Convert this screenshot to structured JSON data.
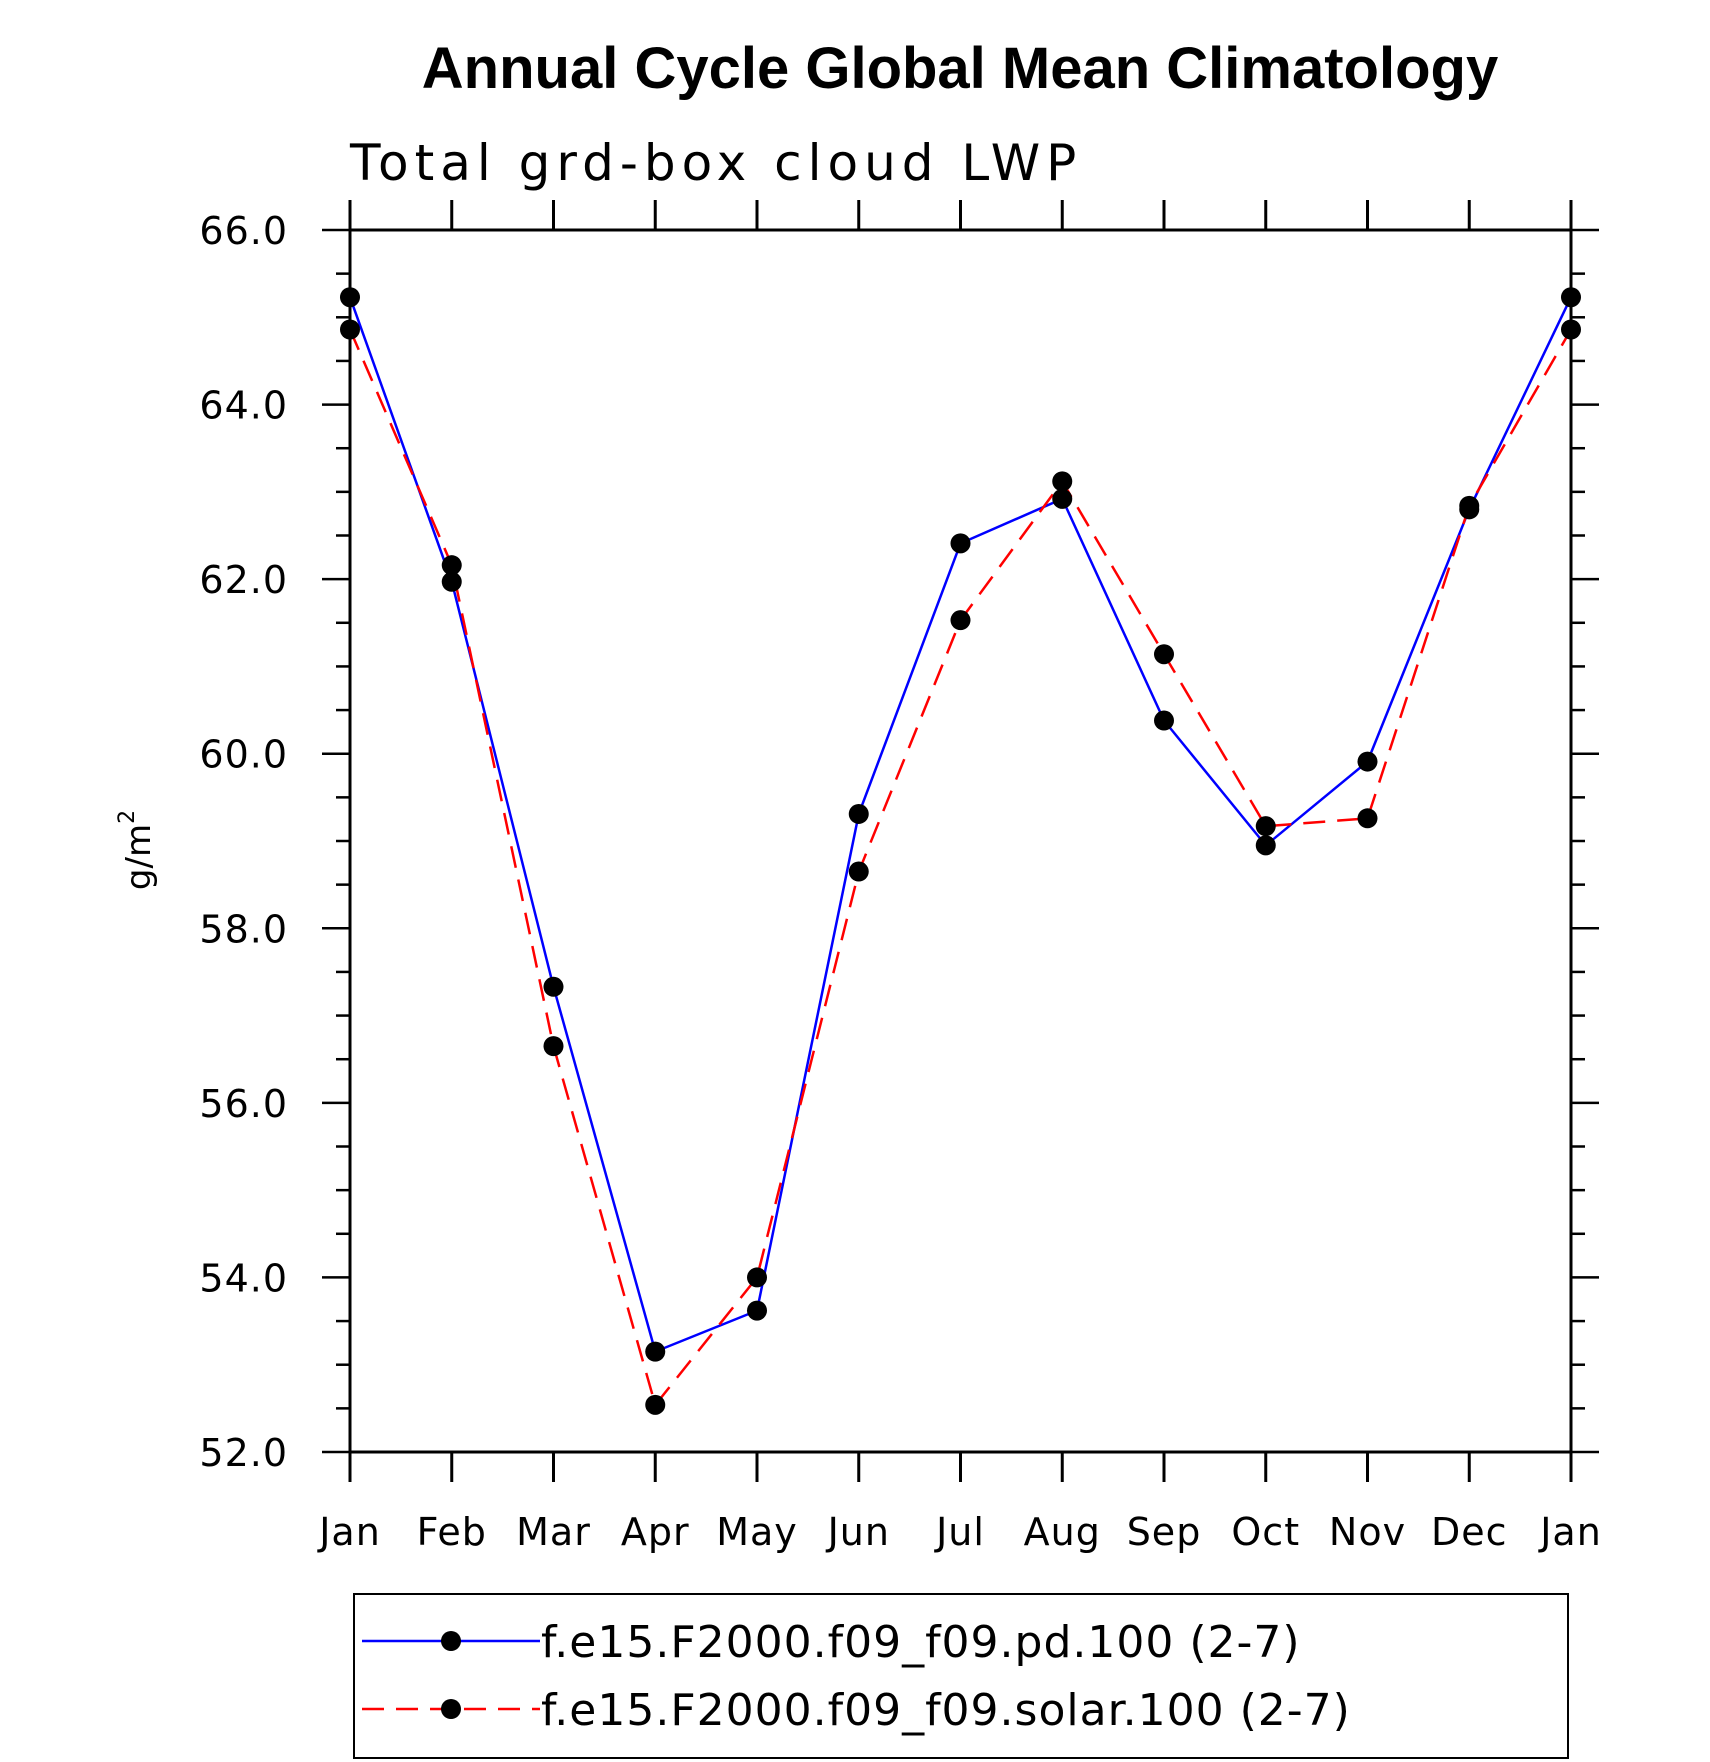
{
  "chart_data": {
    "type": "line",
    "title": "Annual Cycle Global Mean Climatology",
    "subtitle": "Total grd-box cloud LWP",
    "ylabel": "g/m",
    "ylabel_superscript": "2",
    "xlabel": "",
    "ylim": [
      52.0,
      66.0
    ],
    "yticks": [
      "52.0",
      "54.0",
      "56.0",
      "58.0",
      "60.0",
      "62.0",
      "64.0",
      "66.0"
    ],
    "categories": [
      "Jan",
      "Feb",
      "Mar",
      "Apr",
      "May",
      "Jun",
      "Jul",
      "Aug",
      "Sep",
      "Oct",
      "Nov",
      "Dec",
      "Jan"
    ],
    "series": [
      {
        "name": "f.e15.F2000.f09_f09.pd.100 (2-7)",
        "color": "#0000ff",
        "dash": "solid",
        "values": [
          65.23,
          61.97,
          57.33,
          53.15,
          53.62,
          59.31,
          62.41,
          62.92,
          60.38,
          58.95,
          59.91,
          62.8,
          65.23
        ]
      },
      {
        "name": "f.e15.F2000.f09_f09.solar.100 (2-7)",
        "color": "#ff0000",
        "dash": "dashed",
        "values": [
          64.86,
          62.16,
          56.65,
          52.54,
          54.0,
          58.65,
          61.53,
          63.12,
          61.14,
          59.17,
          59.26,
          62.84,
          64.86
        ]
      }
    ],
    "marker_color": "#000000",
    "grid": false,
    "legend_position": "bottom"
  }
}
